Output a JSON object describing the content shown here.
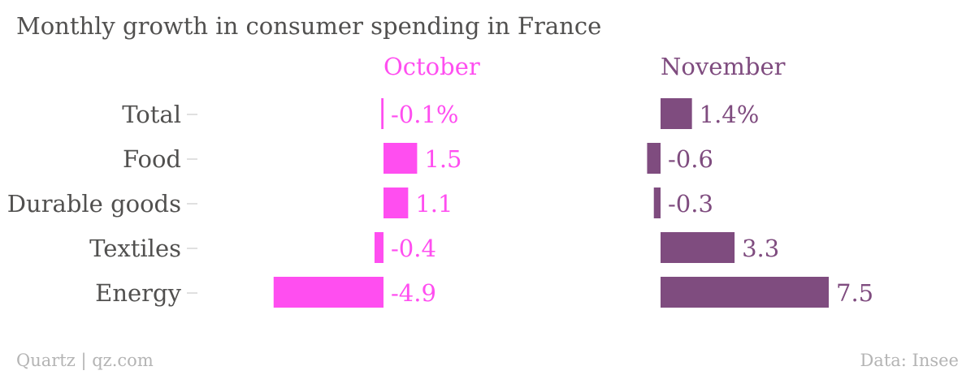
{
  "chart_data": {
    "type": "bar",
    "orientation": "horizontal",
    "title": "Monthly growth in consumer spending in France",
    "categories": [
      "Total",
      "Food",
      "Durable goods",
      "Textiles",
      "Energy"
    ],
    "series": [
      {
        "name": "October",
        "values": [
          -0.1,
          1.5,
          1.1,
          -0.4,
          -4.9
        ],
        "labels": [
          "-0.1%",
          "1.5",
          "1.1",
          "-0.4",
          "-4.9"
        ],
        "color": "#ff4ef0"
      },
      {
        "name": "November",
        "values": [
          1.4,
          -0.6,
          -0.3,
          3.3,
          7.5
        ],
        "labels": [
          "1.4%",
          "-0.6",
          "-0.3",
          "3.3",
          "7.5"
        ],
        "color": "#7f4c7f"
      }
    ],
    "grid": false
  },
  "footer": {
    "source_left": "Quartz | qz.com",
    "source_right": "Data: Insee"
  },
  "colors": {
    "text": "#51504f",
    "footer": "#b4b4b4",
    "tick": "#d6d6d6"
  }
}
